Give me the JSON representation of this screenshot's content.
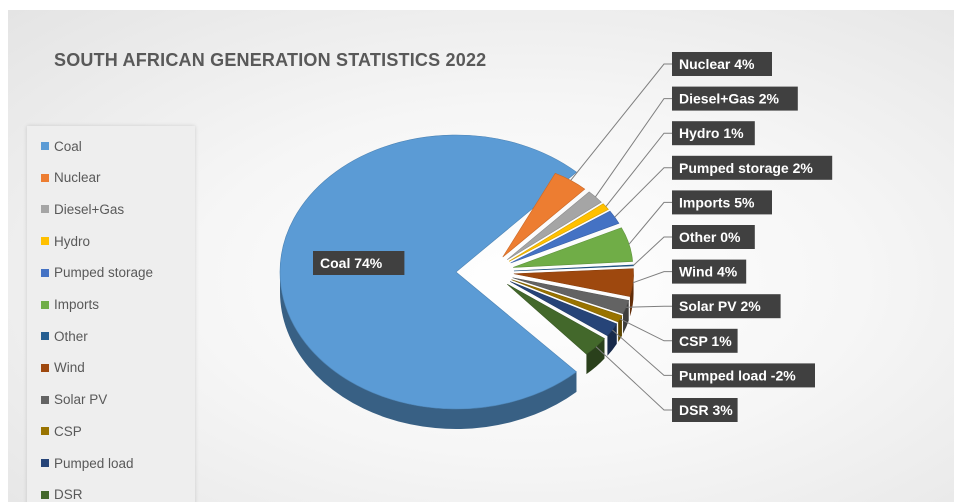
{
  "chart_data": {
    "type": "pie",
    "title": "SOUTH AFRICAN GENERATION STATISTICS 2022",
    "legend_position": "left",
    "slices": [
      {
        "name": "Coal",
        "value": 74,
        "label": "Coal  74%",
        "color": "#5b9bd5"
      },
      {
        "name": "Nuclear",
        "value": 4,
        "label": "Nuclear 4%",
        "color": "#ed7d31"
      },
      {
        "name": "Diesel+Gas",
        "value": 2,
        "label": "Diesel+Gas 2%",
        "color": "#a5a5a5"
      },
      {
        "name": "Hydro",
        "value": 1,
        "label": "Hydro 1%",
        "color": "#ffc000"
      },
      {
        "name": "Pumped storage",
        "value": 2,
        "label": "Pumped storage 2%",
        "color": "#4472c4"
      },
      {
        "name": "Imports",
        "value": 5,
        "label": "Imports 5%",
        "color": "#70ad47"
      },
      {
        "name": "Other",
        "value": 0,
        "label": "Other 0%",
        "color": "#255e91"
      },
      {
        "name": "Wind",
        "value": 4,
        "label": "Wind 4%",
        "color": "#9e480e"
      },
      {
        "name": "Solar PV",
        "value": 2,
        "label": "Solar PV 2%",
        "color": "#636363"
      },
      {
        "name": "CSP",
        "value": 1,
        "label": "CSP 1%",
        "color": "#997300"
      },
      {
        "name": "Pumped load",
        "value": -2,
        "label": "Pumped load -2%",
        "color": "#264478"
      },
      {
        "name": "DSR",
        "value": 3,
        "label": "DSR 3%",
        "color": "#43682b"
      }
    ]
  }
}
